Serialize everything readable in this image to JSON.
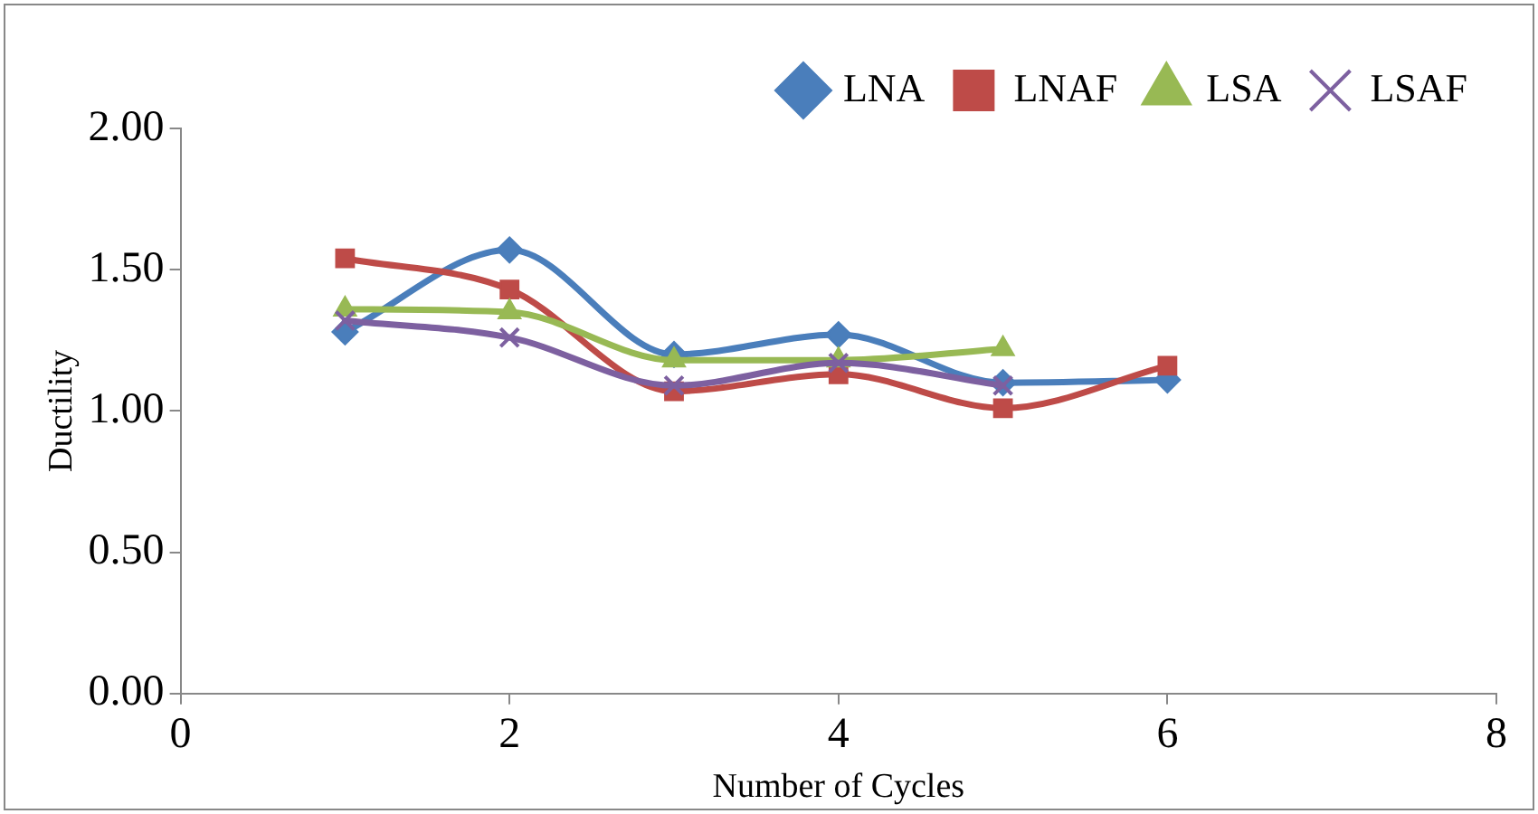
{
  "chart_data": {
    "type": "line",
    "xlabel": "Number of Cycles",
    "ylabel": "Ductility",
    "xlim": [
      0,
      8
    ],
    "xticks": [
      0,
      2,
      4,
      6,
      8
    ],
    "ylim": [
      0,
      2
    ],
    "yticks": [
      {
        "value": 0,
        "label": "0.00"
      },
      {
        "value": 0.5,
        "label": "0.50"
      },
      {
        "value": 1,
        "label": "1.00"
      },
      {
        "value": 1.5,
        "label": "1.50"
      },
      {
        "value": 2,
        "label": "2.00"
      }
    ],
    "grid": false,
    "legend": "top right",
    "series": [
      {
        "name": "LNA",
        "color": "#4a7ebb",
        "marker": "diamond",
        "x": [
          1,
          2,
          3,
          4,
          5,
          6
        ],
        "values": [
          1.28,
          1.57,
          1.2,
          1.27,
          1.1,
          1.11
        ]
      },
      {
        "name": "LNAF",
        "color": "#be4b48",
        "marker": "square",
        "x": [
          1,
          2,
          3,
          4,
          5,
          6
        ],
        "values": [
          1.54,
          1.43,
          1.07,
          1.13,
          1.01,
          1.16
        ]
      },
      {
        "name": "LSA",
        "color": "#98b954",
        "marker": "triangle",
        "x": [
          1,
          2,
          3,
          4,
          5
        ],
        "values": [
          1.36,
          1.35,
          1.18,
          1.18,
          1.22
        ]
      },
      {
        "name": "LSAF",
        "color": "#7d60a0",
        "marker": "cross",
        "x": [
          1,
          2,
          3,
          4,
          5
        ],
        "values": [
          1.32,
          1.26,
          1.09,
          1.17,
          1.09
        ]
      }
    ]
  }
}
